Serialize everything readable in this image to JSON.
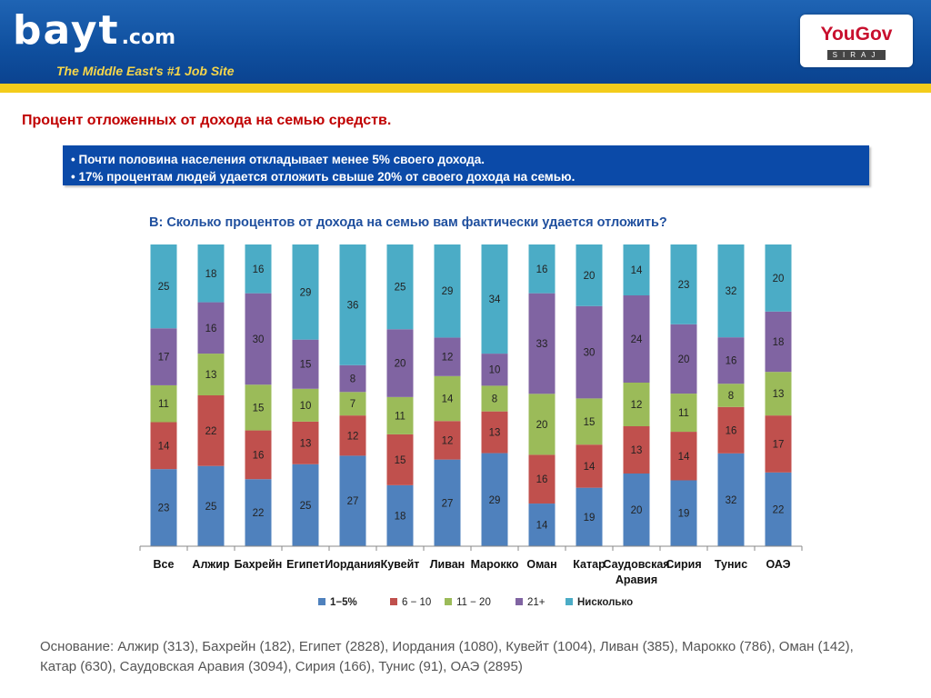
{
  "header": {
    "logo_text": "bayt",
    "logo_suffix": ".com",
    "tagline": "The Middle East's #1 Job Site",
    "partner_name": "YouGov",
    "partner_sub": "SIRAJ"
  },
  "page_title": "Процент отложенных от дохода на семью средств.",
  "bullets": [
    "•  Почти половина населения откладывает менее 5% своего дохода.",
    "• 17% процентам людей удается отложить свыше 20% от своего дохода на семью."
  ],
  "question": "В: Сколько процентов от дохода на семью вам фактически удается отложить?",
  "chart_data": {
    "type": "bar",
    "stacked": true,
    "normalized": true,
    "categories": [
      "Все",
      "Алжир",
      "Бахрейн",
      "Египет",
      "Иордания",
      "Кувейт",
      "Ливан",
      "Марокко",
      "Оман",
      "Катар",
      "Саудовская Аравия",
      "Сирия",
      "Тунис",
      "ОАЭ"
    ],
    "series": [
      {
        "name": "1−5%",
        "color": "#4f81bd",
        "values": [
          23,
          25,
          22,
          25,
          27,
          18,
          27,
          29,
          14,
          19,
          20,
          19,
          32,
          22
        ]
      },
      {
        "name": "6 − 10",
        "color": "#c0504d",
        "values": [
          14,
          22,
          16,
          13,
          12,
          15,
          12,
          13,
          16,
          14,
          13,
          14,
          16,
          17
        ]
      },
      {
        "name": "11 − 20",
        "color": "#9bbb59",
        "values": [
          11,
          13,
          15,
          10,
          7,
          11,
          14,
          8,
          20,
          15,
          12,
          11,
          8,
          13
        ]
      },
      {
        "name": "21+",
        "color": "#8064a2",
        "values": [
          17,
          16,
          30,
          15,
          8,
          20,
          12,
          10,
          33,
          30,
          24,
          20,
          16,
          18
        ]
      },
      {
        "name": "Нисколько",
        "color": "#4bacc6",
        "values": [
          25,
          18,
          16,
          29,
          36,
          25,
          29,
          34,
          16,
          20,
          14,
          23,
          32,
          20
        ]
      }
    ],
    "legend_position": "bottom"
  },
  "footnote": [
    "Основание: Алжир (313), Бахрейн (182), Египет (2828), Иордания (1080), Кувейт (1004), Ливан  (385), Марокко (786), Оман (142),",
    "Катар (630), Саудовская Аравия (3094), Сирия (166), Тунис (91), ОАЭ (2895)"
  ]
}
